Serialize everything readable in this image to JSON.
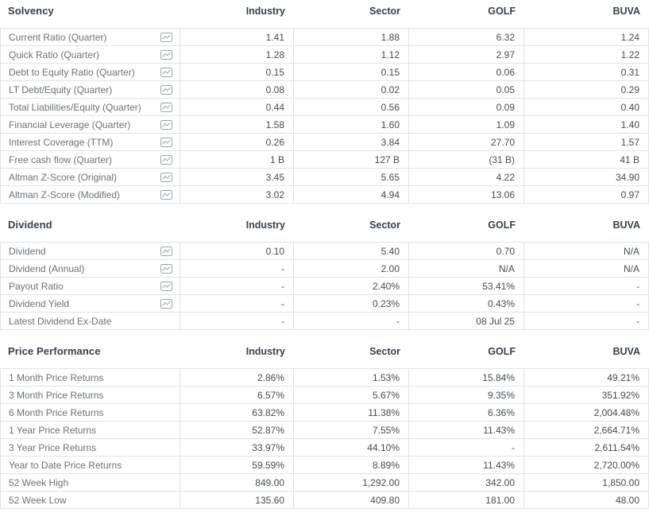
{
  "columns": [
    "Industry",
    "Sector",
    "GOLF",
    "BUVA"
  ],
  "icon_color": "#9aa4ab",
  "sections": [
    {
      "title": "Solvency",
      "rows": [
        {
          "label": "Current Ratio (Quarter)",
          "icon": true,
          "values": [
            "1.41",
            "1.88",
            "6.32",
            "1.24"
          ]
        },
        {
          "label": "Quick Ratio (Quarter)",
          "icon": true,
          "values": [
            "1.28",
            "1.12",
            "2.97",
            "1.22"
          ]
        },
        {
          "label": "Debt to Equity Ratio (Quarter)",
          "icon": true,
          "values": [
            "0.15",
            "0.15",
            "0.06",
            "0.31"
          ]
        },
        {
          "label": "LT Debt/Equity (Quarter)",
          "icon": true,
          "values": [
            "0.08",
            "0.02",
            "0.05",
            "0.29"
          ]
        },
        {
          "label": "Total Liabilities/Equity (Quarter)",
          "icon": true,
          "values": [
            "0.44",
            "0.56",
            "0.09",
            "0.40"
          ]
        },
        {
          "label": "Financial Leverage (Quarter)",
          "icon": true,
          "values": [
            "1.58",
            "1.60",
            "1.09",
            "1.40"
          ]
        },
        {
          "label": "Interest Coverage (TTM)",
          "icon": true,
          "values": [
            "0.26",
            "3.84",
            "27.70",
            "1.57"
          ]
        },
        {
          "label": "Free cash flow (Quarter)",
          "icon": true,
          "values": [
            "1 B",
            "127 B",
            "(31 B)",
            "41 B"
          ]
        },
        {
          "label": "Altman Z-Score (Original)",
          "icon": true,
          "values": [
            "3.45",
            "5.65",
            "4.22",
            "34.90"
          ]
        },
        {
          "label": "Altman Z-Score (Modified)",
          "icon": true,
          "values": [
            "3.02",
            "4.94",
            "13.06",
            "0.97"
          ]
        }
      ]
    },
    {
      "title": "Dividend",
      "rows": [
        {
          "label": "Dividend",
          "icon": true,
          "values": [
            "0.10",
            "5.40",
            "0.70",
            "N/A"
          ]
        },
        {
          "label": "Dividend (Annual)",
          "icon": true,
          "values": [
            "-",
            "2.00",
            "N/A",
            "N/A"
          ]
        },
        {
          "label": "Payout Ratio",
          "icon": true,
          "values": [
            "-",
            "2.40%",
            "53.41%",
            "-"
          ]
        },
        {
          "label": "Dividend Yield",
          "icon": true,
          "values": [
            "-",
            "0.23%",
            "0.43%",
            "-"
          ]
        },
        {
          "label": "Latest Dividend Ex-Date",
          "icon": false,
          "values": [
            "-",
            "-",
            "08 Jul 25",
            "-"
          ]
        }
      ]
    },
    {
      "title": "Price Performance",
      "rows": [
        {
          "label": "1 Month Price Returns",
          "icon": false,
          "values": [
            "2.86%",
            "1.53%",
            "15.84%",
            "49.21%"
          ]
        },
        {
          "label": "3 Month Price Returns",
          "icon": false,
          "values": [
            "6.57%",
            "5.67%",
            "9.35%",
            "351.92%"
          ]
        },
        {
          "label": "6 Month Price Returns",
          "icon": false,
          "values": [
            "63.82%",
            "11.38%",
            "6.36%",
            "2,004.48%"
          ]
        },
        {
          "label": "1 Year Price Returns",
          "icon": false,
          "values": [
            "52.87%",
            "7.55%",
            "11.43%",
            "2,664.71%"
          ]
        },
        {
          "label": "3 Year Price Returns",
          "icon": false,
          "values": [
            "33.97%",
            "44.10%",
            "-",
            "2,611.54%"
          ]
        },
        {
          "label": "Year to Date Price Returns",
          "icon": false,
          "values": [
            "59.59%",
            "8.89%",
            "11.43%",
            "2,720.00%"
          ]
        },
        {
          "label": "52 Week High",
          "icon": false,
          "values": [
            "849.00",
            "1,292.00",
            "342.00",
            "1,850.00"
          ]
        },
        {
          "label": "52 Week Low",
          "icon": false,
          "values": [
            "135.60",
            "409.80",
            "181.00",
            "48.00"
          ]
        }
      ]
    }
  ]
}
